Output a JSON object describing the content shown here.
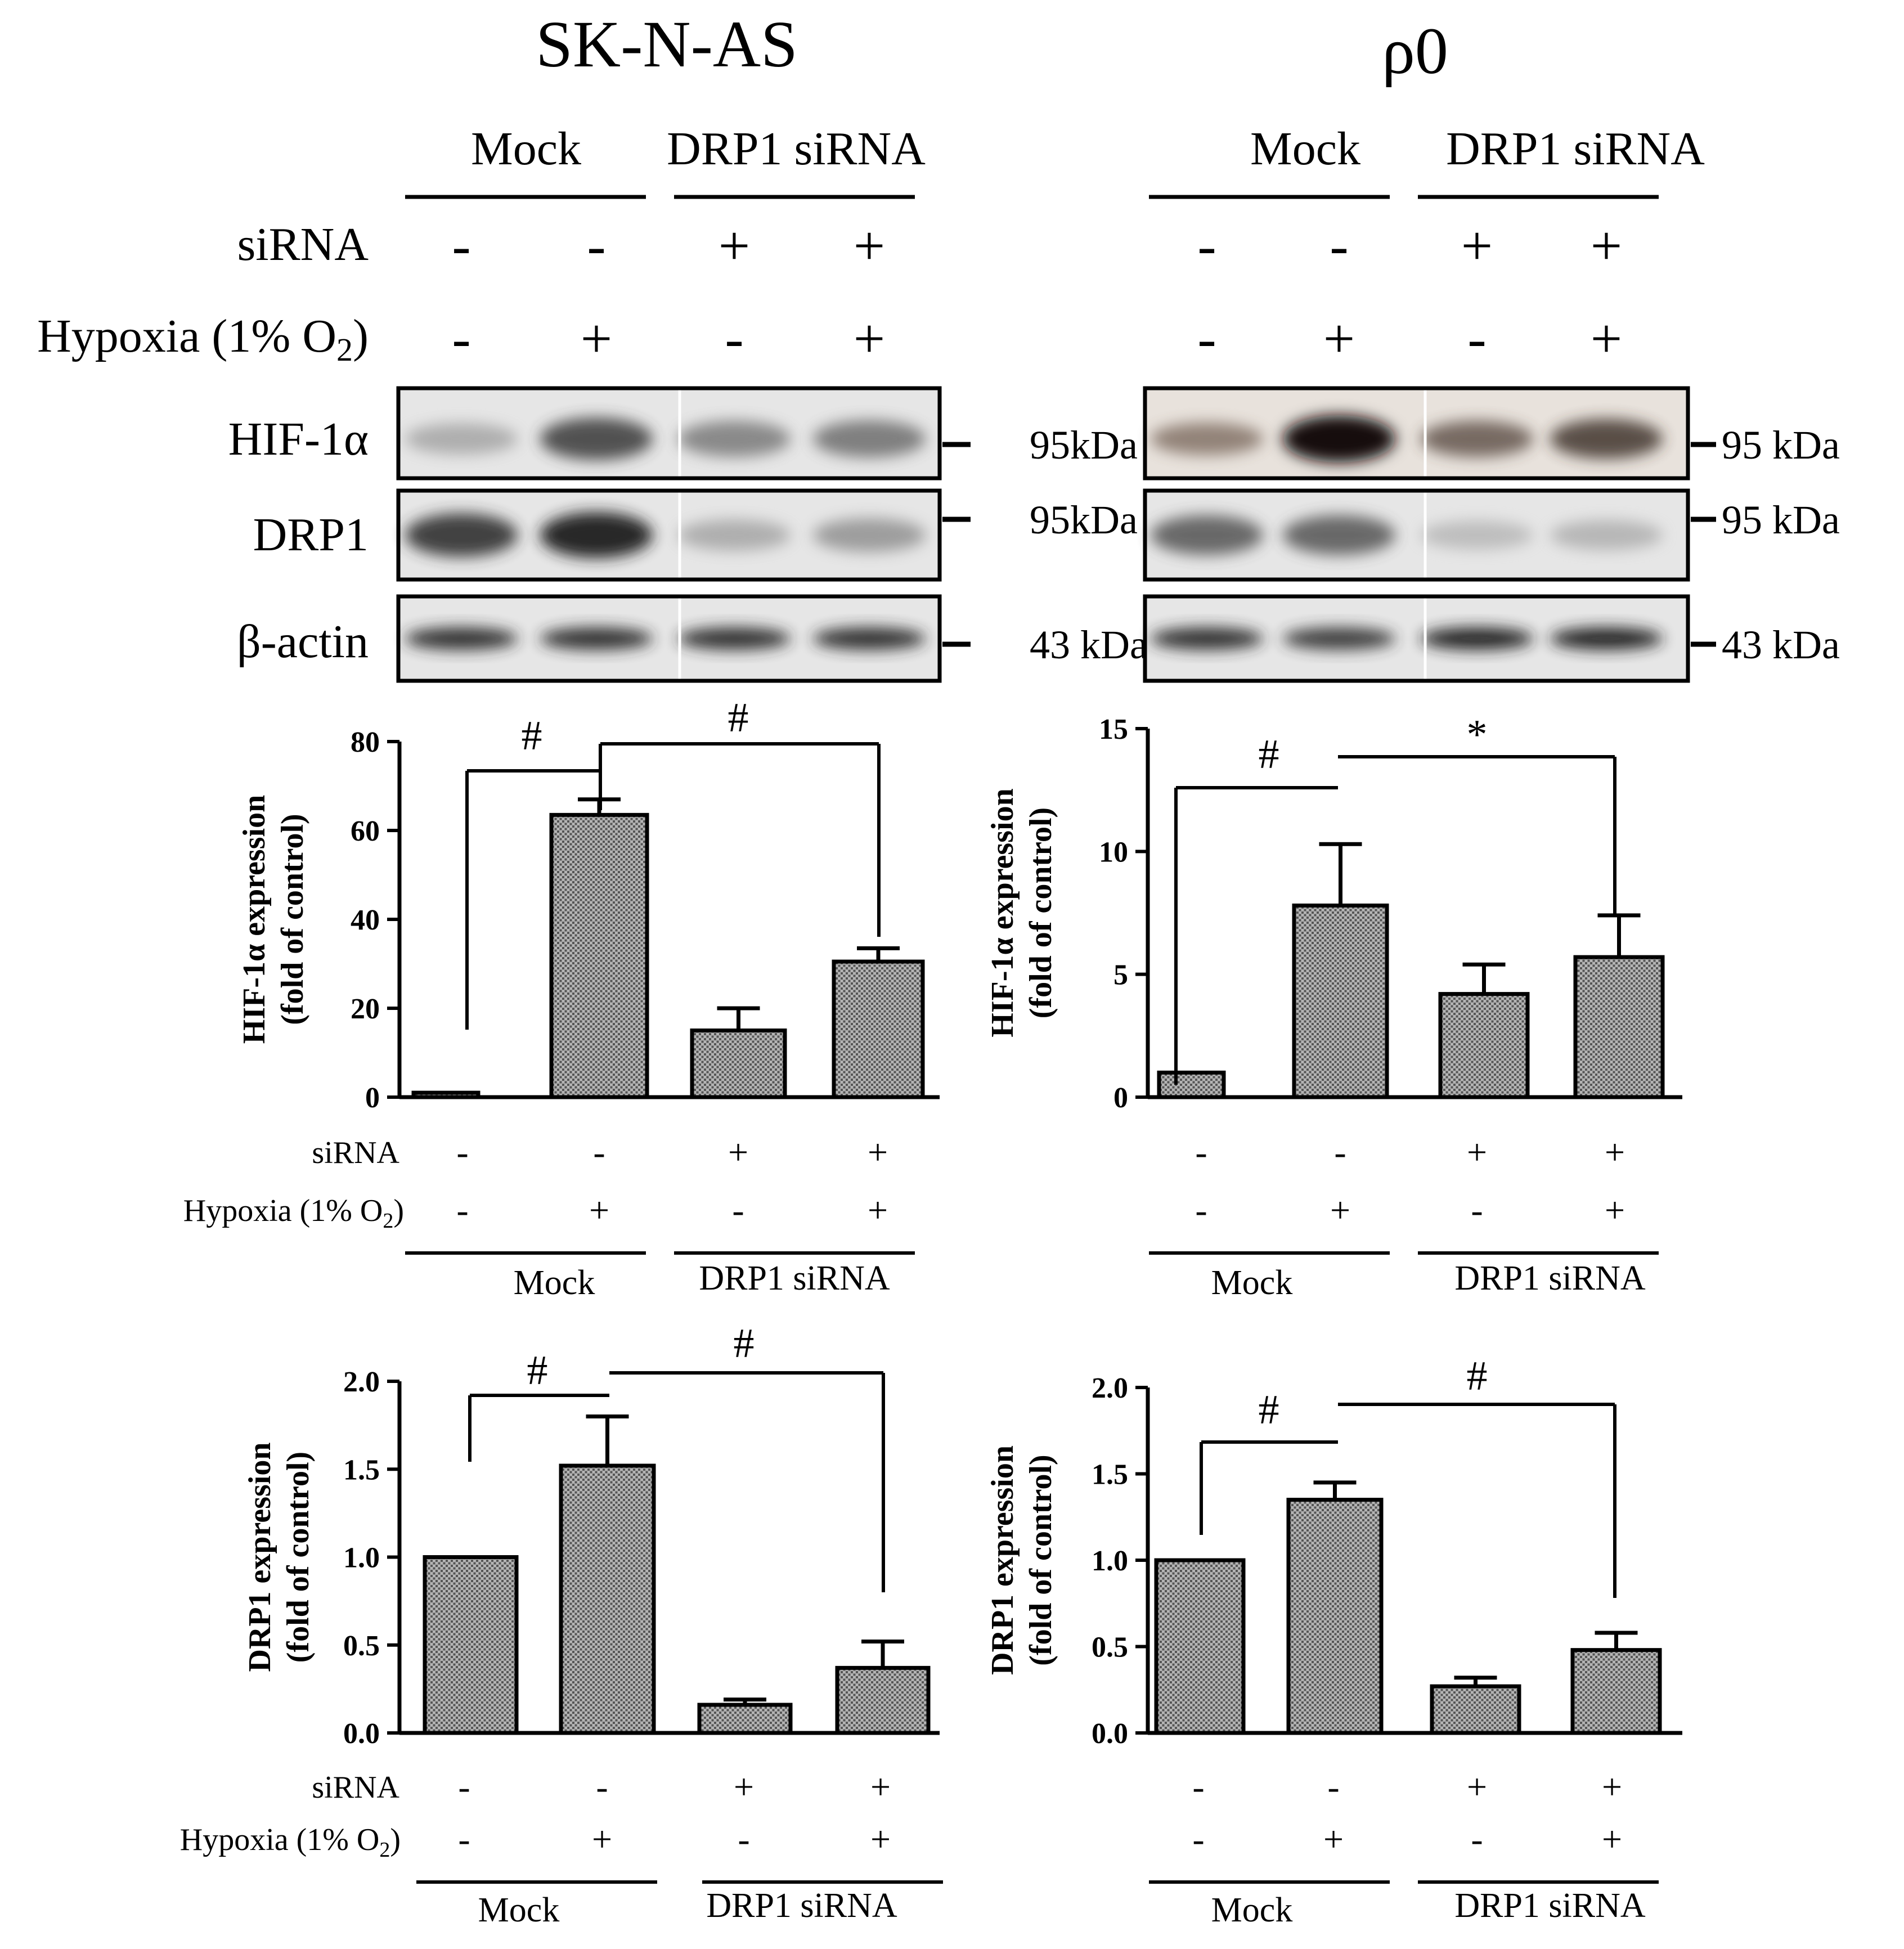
{
  "titles": {
    "left": "SK-N-AS",
    "right": "ρ0"
  },
  "groups": {
    "mock": "Mock",
    "drp1": "DRP1 siRNA"
  },
  "row_labels": {
    "sirna": "siRNA",
    "hypoxia_prefix": "Hypoxia (1% O",
    "hypoxia_sub": "2",
    "hypoxia_suffix": ")"
  },
  "conditions": {
    "sirna": [
      "-",
      "-",
      "+",
      "+"
    ],
    "hypoxia": [
      "-",
      "+",
      "-",
      "+"
    ]
  },
  "blot": {
    "bands": [
      "HIF-1α",
      "DRP1",
      "β-actin"
    ],
    "left_kda": [
      "95kDa",
      "95kDa",
      "43 kDa"
    ],
    "right_kda": [
      "95 kDa",
      "95 kDa",
      "43 kDa"
    ]
  },
  "colors": {
    "bar_fill": "#a8a8a8",
    "ink": "#000000",
    "band": "#2b2b2b"
  },
  "chart_data": [
    {
      "type": "bar",
      "panel": "SK-N-AS HIF-1α",
      "categories": [
        "Mock -/-",
        "Mock -/+",
        "DRP1 siRNA +/-",
        "DRP1 siRNA +/+"
      ],
      "values": [
        1,
        63.5,
        15,
        30.5
      ],
      "errors": [
        0,
        3.5,
        5,
        3
      ],
      "ylabel": "HIF-1α expression (fold of control)",
      "ylim": [
        0,
        80
      ],
      "yticks": [
        "0",
        "20",
        "40",
        "60",
        "80"
      ],
      "significance": [
        "#",
        "#"
      ]
    },
    {
      "type": "bar",
      "panel": "ρ0 HIF-1α",
      "categories": [
        "Mock -/-",
        "Mock -/+",
        "DRP1 siRNA +/-",
        "DRP1 siRNA +/+"
      ],
      "values": [
        1,
        7.8,
        4.2,
        5.7
      ],
      "errors": [
        0,
        2.5,
        1.2,
        1.7
      ],
      "ylabel": "HIF-1α expression (fold of control)",
      "ylim": [
        0,
        15
      ],
      "yticks": [
        "0",
        "5",
        "10",
        "15"
      ],
      "significance": [
        "#",
        "*"
      ]
    },
    {
      "type": "bar",
      "panel": "SK-N-AS DRP1",
      "categories": [
        "Mock -/-",
        "Mock -/+",
        "DRP1 siRNA +/-",
        "DRP1 siRNA +/+"
      ],
      "values": [
        1.0,
        1.52,
        0.16,
        0.37
      ],
      "errors": [
        0,
        0.28,
        0.03,
        0.15
      ],
      "ylabel": "DRP1 expression (fold of control)",
      "ylim": [
        0,
        2.0
      ],
      "yticks": [
        "0.0",
        "0.5",
        "1.0",
        "1.5",
        "2.0"
      ],
      "significance": [
        "#",
        "#"
      ]
    },
    {
      "type": "bar",
      "panel": "ρ0 DRP1",
      "categories": [
        "Mock -/-",
        "Mock -/+",
        "DRP1 siRNA +/-",
        "DRP1 siRNA +/+"
      ],
      "values": [
        1.0,
        1.35,
        0.27,
        0.48
      ],
      "errors": [
        0,
        0.1,
        0.05,
        0.1
      ],
      "ylabel": "DRP1 expression (fold of control)",
      "ylim": [
        0,
        2.0
      ],
      "yticks": [
        "0.0",
        "0.5",
        "1.0",
        "1.5",
        "2.0"
      ],
      "significance": [
        "#",
        "#"
      ]
    }
  ]
}
